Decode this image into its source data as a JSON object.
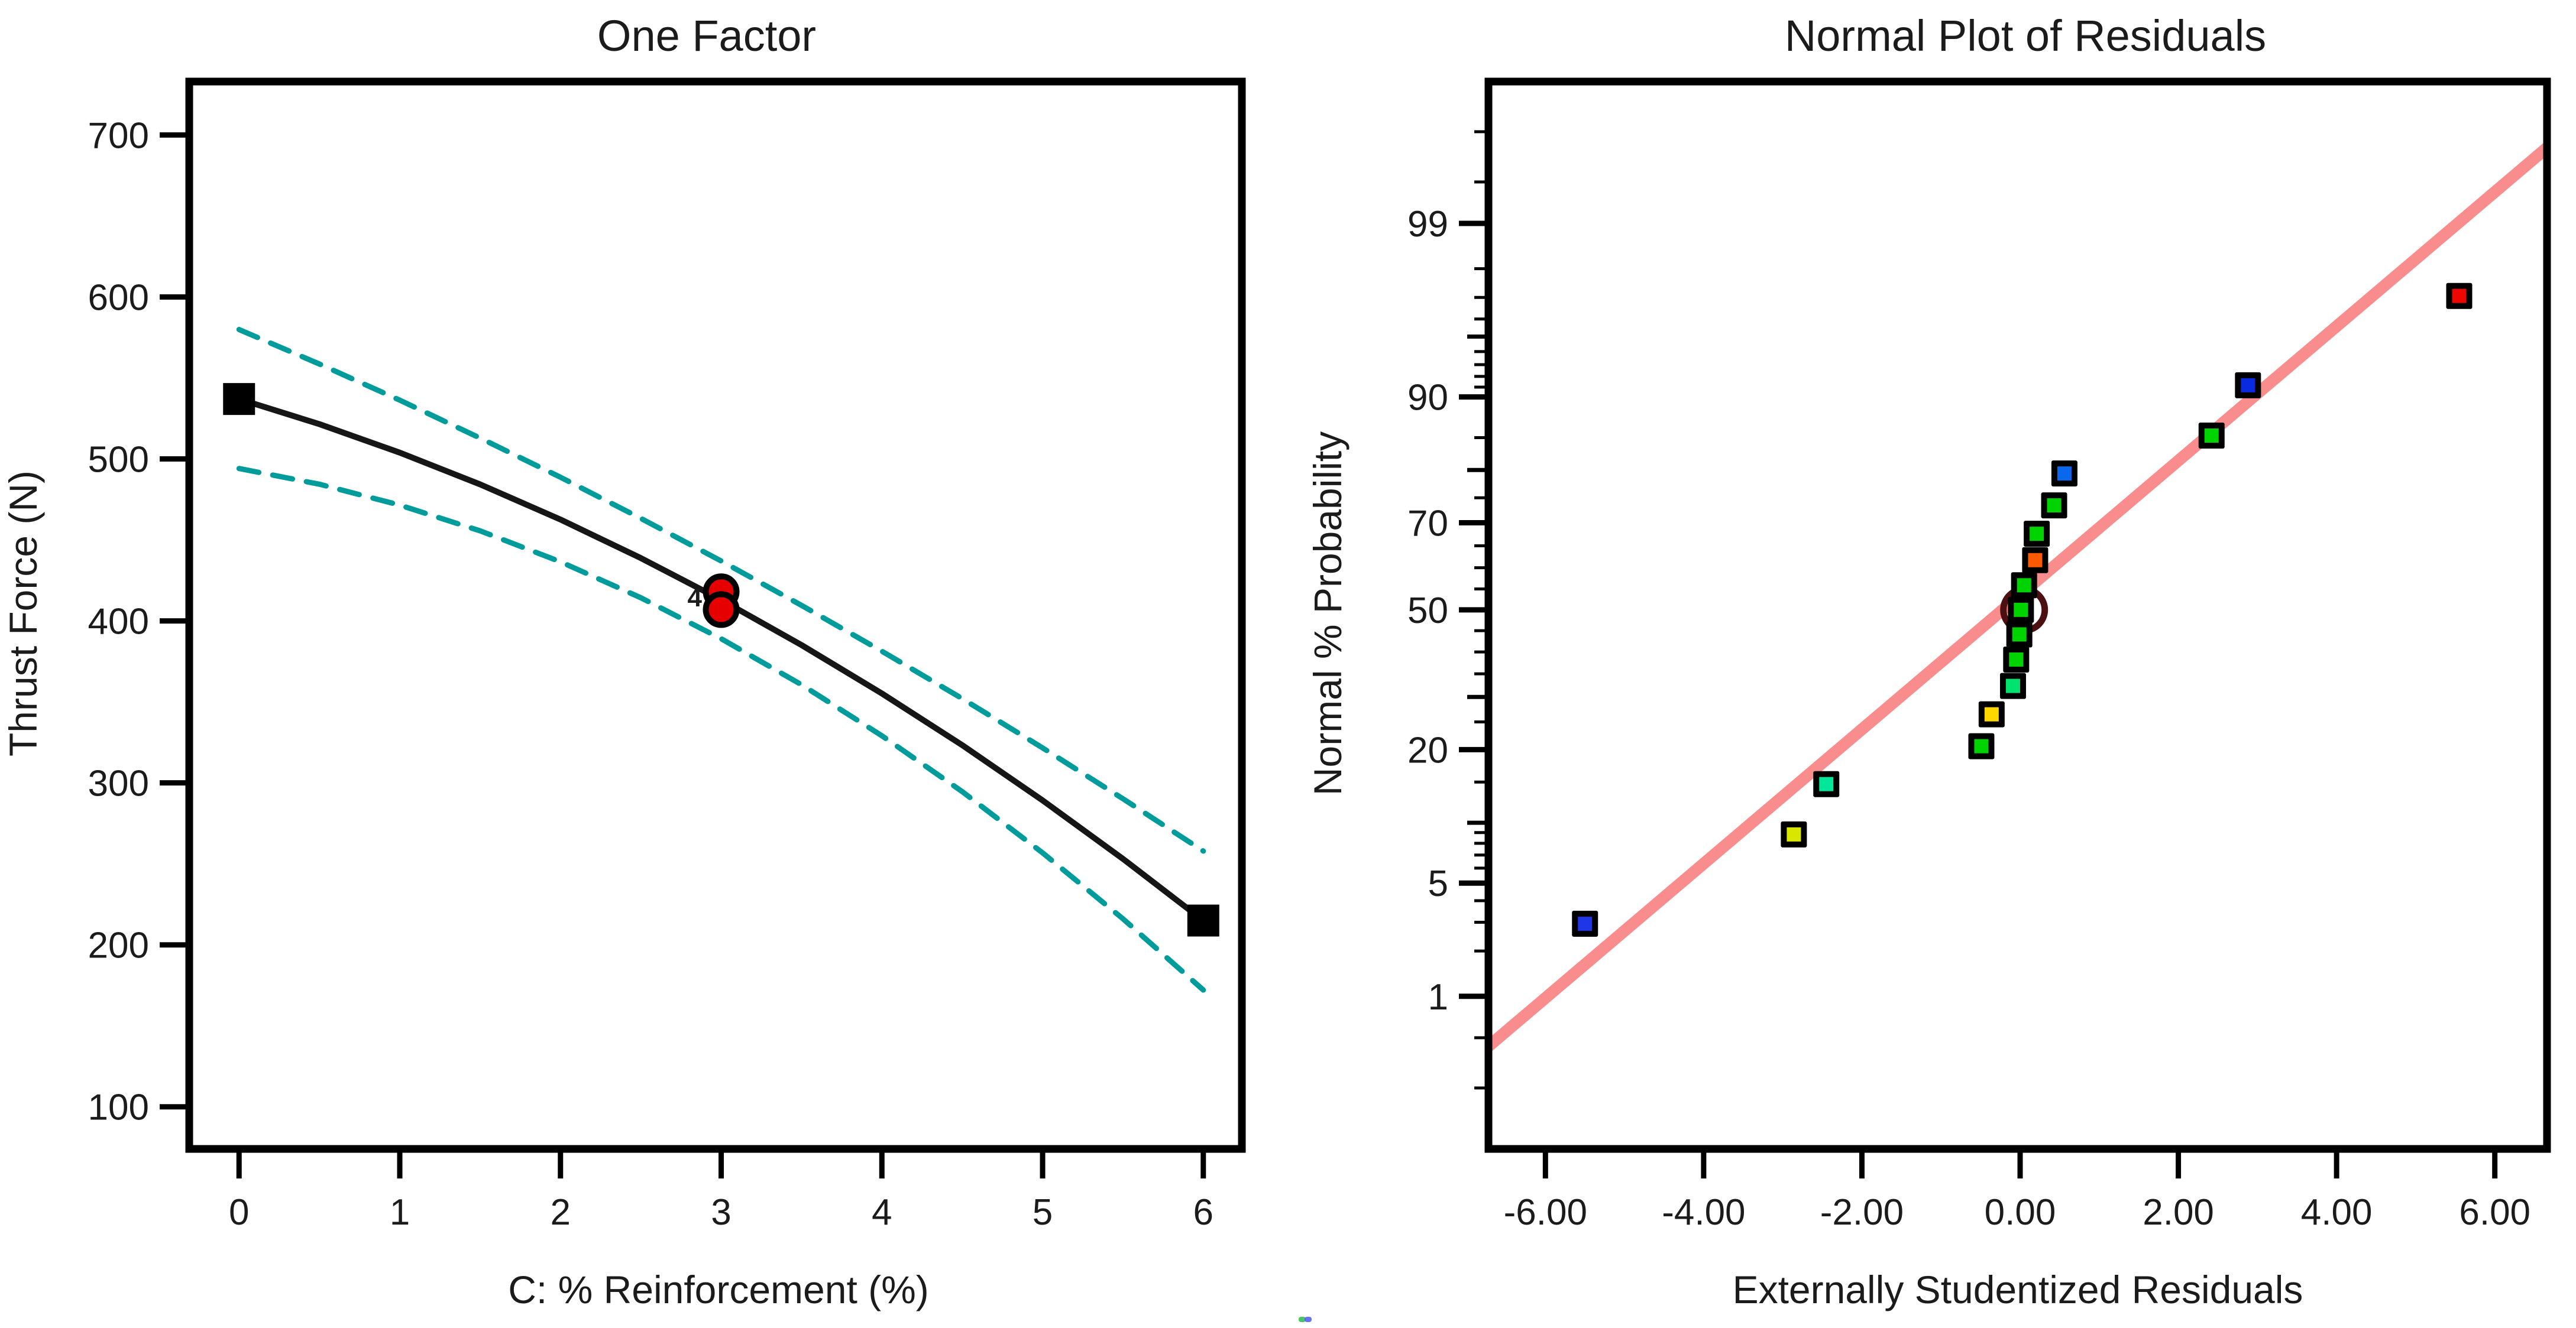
{
  "figure": {
    "background": "#ffffff",
    "frame_color": "#000000",
    "text_color": "#1b1b1b",
    "artifact_dot_colors": [
      "#2eb84d",
      "#4f5bee"
    ]
  },
  "chart_data": [
    {
      "type": "line",
      "title": "One Factor",
      "xlabel": "C: % Reinforcement (%)",
      "ylabel": "Thrust Force (N)",
      "xlim": [
        -0.31,
        6.24
      ],
      "ylim": [
        74,
        733
      ],
      "grid": false,
      "xticks": [
        0,
        1,
        2,
        3,
        4,
        5,
        6
      ],
      "yticks": [
        100,
        200,
        300,
        400,
        500,
        600,
        700
      ],
      "x_samples": [
        0,
        0.5,
        1,
        1.5,
        2,
        2.5,
        3,
        3.5,
        4,
        4.5,
        5,
        5.5,
        6
      ],
      "series": [
        {
          "name": "prediction",
          "style": "solid",
          "color": "#161616",
          "values": [
            537,
            521.5,
            503.9,
            484.3,
            462.6,
            438.8,
            413,
            385.1,
            355.2,
            323.3,
            289.2,
            253.1,
            215
          ]
        },
        {
          "name": "ci-band-high",
          "style": "dashed",
          "color": "#009c9c",
          "values": [
            579.9,
            558.6,
            536.3,
            512.9,
            488.7,
            463.3,
            437,
            409.6,
            381.3,
            352,
            321.6,
            290.2,
            257.9
          ]
        },
        {
          "name": "ci-band-low",
          "style": "dashed",
          "color": "#009c9c",
          "values": [
            494.1,
            484.4,
            471.5,
            455.6,
            436.5,
            414.3,
            389,
            360.6,
            329.1,
            294.6,
            256.8,
            216.1,
            172.1
          ]
        }
      ],
      "design_points": [
        {
          "x": 0,
          "y": 537,
          "marker": "square",
          "color": "#000000"
        },
        {
          "x": 6,
          "y": 215,
          "marker": "square",
          "color": "#000000"
        }
      ],
      "replicate_points": {
        "x": 3,
        "values": [
          418,
          407
        ],
        "marker": "circle",
        "fill": "#e60000",
        "outline": "#000000",
        "count_label": "4"
      }
    },
    {
      "type": "scatter",
      "title": "Normal Plot of Residuals",
      "xlabel": "Externally Studentized Residuals",
      "ylabel": "Normal % Probability",
      "xlim": [
        -6.72,
        6.66
      ],
      "ylim_z": [
        -3.245,
        3.18
      ],
      "grid": false,
      "xticks": [
        {
          "v": -6,
          "label": "-6.00"
        },
        {
          "v": -4,
          "label": "-4.00"
        },
        {
          "v": -2,
          "label": "-2.00"
        },
        {
          "v": 0,
          "label": "0.00"
        },
        {
          "v": 2,
          "label": "2.00"
        },
        {
          "v": 4,
          "label": "4.00"
        },
        {
          "v": 6,
          "label": "6.00"
        }
      ],
      "yticks": [
        {
          "v": 1,
          "label": "1"
        },
        {
          "v": 5,
          "label": "5"
        },
        {
          "v": 20,
          "label": "20"
        },
        {
          "v": 50,
          "label": "50"
        },
        {
          "v": 70,
          "label": "70"
        },
        {
          "v": 90,
          "label": "90"
        },
        {
          "v": 99,
          "label": "99"
        }
      ],
      "yticks_medium": [
        10,
        30,
        80,
        95
      ],
      "yticks_minor": [
        0.2,
        0.5,
        2,
        3,
        4,
        6,
        7,
        8,
        9,
        15,
        25,
        35,
        40,
        45,
        55,
        60,
        65,
        75,
        85,
        91,
        92,
        93,
        94,
        96,
        97,
        98,
        99.5,
        99.8
      ],
      "points": [
        {
          "x": -5.5,
          "p": 2.94,
          "color": "#1f35e8"
        },
        {
          "x": -2.86,
          "p": 8.82,
          "color": "#d9e600"
        },
        {
          "x": -2.45,
          "p": 14.71,
          "color": "#00e79b"
        },
        {
          "x": -0.49,
          "p": 20.59,
          "color": "#00d400"
        },
        {
          "x": -0.36,
          "p": 26.47,
          "color": "#ffd700"
        },
        {
          "x": -0.09,
          "p": 32.35,
          "color": "#00e36e"
        },
        {
          "x": -0.05,
          "p": 38.24,
          "color": "#00d400"
        },
        {
          "x": -0.01,
          "p": 44.12,
          "color": "#00d400"
        },
        {
          "x": 0.01,
          "p": 50.0,
          "color": "#00d400"
        },
        {
          "x": 0.05,
          "p": 55.88,
          "color": "#00d400"
        },
        {
          "x": 0.19,
          "p": 61.76,
          "color": "#fb5a00"
        },
        {
          "x": 0.21,
          "p": 67.65,
          "color": "#00d400"
        },
        {
          "x": 0.43,
          "p": 73.53,
          "color": "#00d400"
        },
        {
          "x": 0.56,
          "p": 79.41,
          "color": "#0968ec"
        },
        {
          "x": 2.42,
          "p": 85.29,
          "color": "#00d400"
        },
        {
          "x": 2.88,
          "p": 91.18,
          "color": "#0a2ae0"
        },
        {
          "x": 5.55,
          "p": 97.06,
          "color": "#ee0600"
        }
      ],
      "fit_line": {
        "x1": -6.72,
        "p1": 0.43,
        "x2": 6.66,
        "p2": 99.73,
        "color": "#f98c8c"
      },
      "highlight_circle": {
        "x": 0.05,
        "p": 50.0,
        "color": "#4d1010"
      }
    }
  ]
}
